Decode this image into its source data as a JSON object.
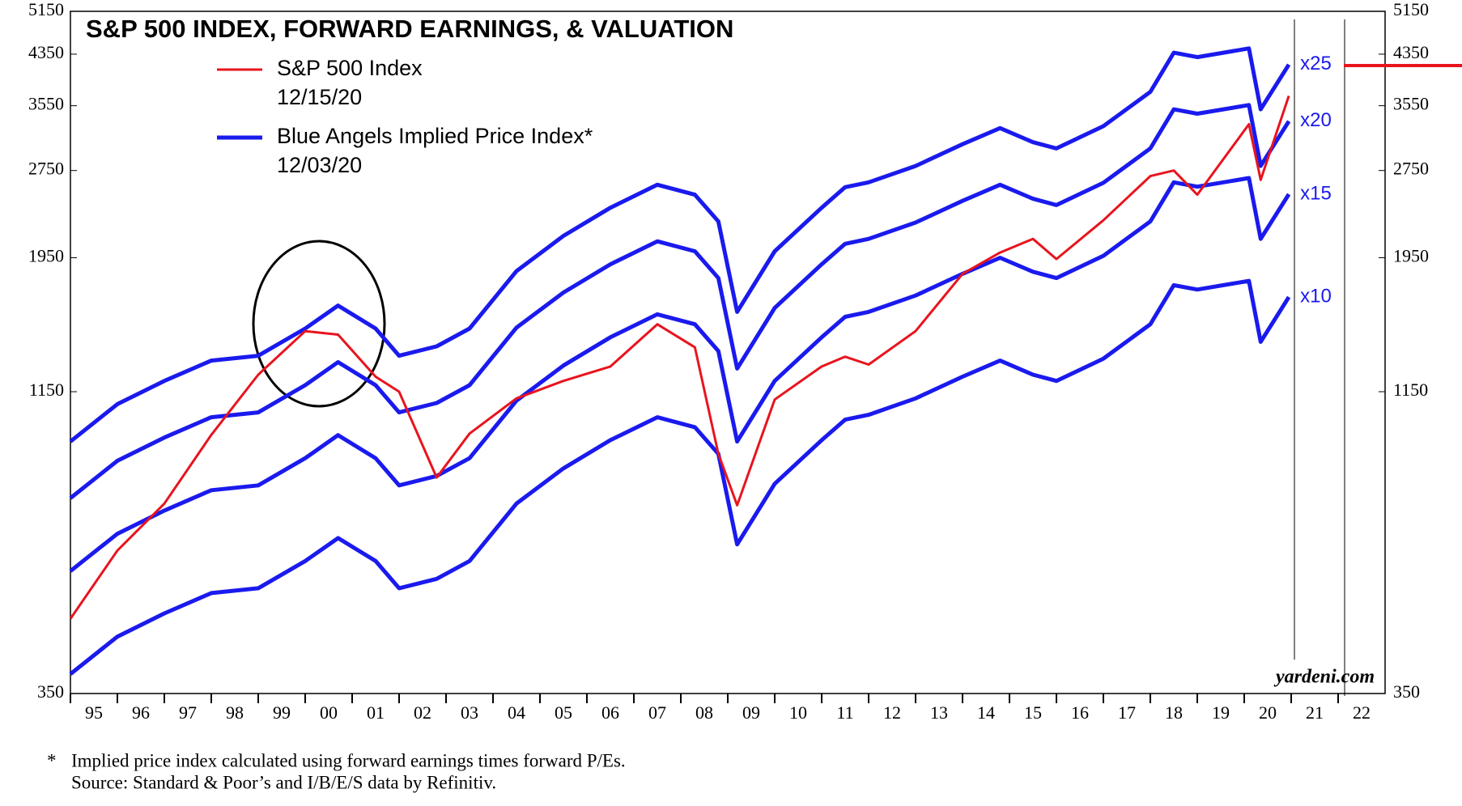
{
  "chart_data": {
    "type": "line",
    "title": "S&P 500 INDEX, FORWARD EARNINGS, & VALUATION",
    "legend": [
      {
        "label": "S&P 500 Index",
        "date": "12/15/20",
        "color": "#e8141e"
      },
      {
        "label": "Blue Angels Implied Price Index*",
        "date": "12/03/20",
        "color": "#1a1aee"
      }
    ],
    "x": [
      1995.0,
      1996.0,
      1997.0,
      1998.0,
      1999.0,
      2000.0,
      2000.7,
      2001.5,
      2002.0,
      2002.8,
      2003.5,
      2004.5,
      2005.5,
      2006.5,
      2007.5,
      2008.3,
      2008.8,
      2009.2,
      2010.0,
      2011.0,
      2011.5,
      2012.0,
      2013.0,
      2014.0,
      2014.8,
      2015.5,
      2016.0,
      2017.0,
      2018.0,
      2018.5,
      2019.0,
      2020.1,
      2020.35,
      2020.95
    ],
    "series": [
      {
        "name": "x25",
        "color": "#1a1aee",
        "values": [
          945,
          1095,
          1200,
          1300,
          1325,
          1475,
          1615,
          1475,
          1325,
          1375,
          1475,
          1850,
          2125,
          2375,
          2600,
          2500,
          2250,
          1575,
          2000,
          2375,
          2575,
          2625,
          2800,
          3050,
          3250,
          3075,
          3000,
          3275,
          3750,
          4375,
          4300,
          4450,
          3500,
          4175
        ]
      },
      {
        "name": "x20",
        "color": "#1a1aee",
        "values": [
          756,
          876,
          960,
          1040,
          1060,
          1180,
          1292,
          1180,
          1060,
          1100,
          1180,
          1480,
          1700,
          1900,
          2080,
          2000,
          1800,
          1260,
          1600,
          1900,
          2060,
          2100,
          2240,
          2440,
          2600,
          2460,
          2400,
          2620,
          3000,
          3500,
          3440,
          3560,
          2800,
          3340
        ]
      },
      {
        "name": "x15",
        "color": "#1a1aee",
        "values": [
          567,
          657,
          720,
          780,
          795,
          885,
          969,
          885,
          795,
          825,
          885,
          1110,
          1275,
          1425,
          1560,
          1500,
          1350,
          945,
          1200,
          1425,
          1545,
          1575,
          1680,
          1830,
          1950,
          1845,
          1800,
          1965,
          2250,
          2625,
          2580,
          2670,
          2100,
          2505
        ]
      },
      {
        "name": "x10",
        "color": "#1a1aee",
        "values": [
          378,
          438,
          480,
          520,
          530,
          590,
          646,
          590,
          530,
          550,
          590,
          740,
          850,
          950,
          1040,
          1000,
          900,
          630,
          800,
          950,
          1030,
          1050,
          1120,
          1220,
          1300,
          1230,
          1200,
          1310,
          1500,
          1750,
          1720,
          1780,
          1400,
          1670
        ]
      },
      {
        "name": "S&P 500 Index",
        "color": "#e8141e",
        "values": [
          470,
          615,
          740,
          970,
          1230,
          1460,
          1440,
          1220,
          1150,
          820,
          975,
          1120,
          1200,
          1270,
          1500,
          1370,
          900,
          735,
          1115,
          1270,
          1320,
          1280,
          1460,
          1830,
          1990,
          2100,
          1940,
          2260,
          2690,
          2750,
          2500,
          3300,
          2650,
          3690
        ]
      }
    ],
    "log_scale": true,
    "xlim": [
      1995,
      2023
    ],
    "xticks": [
      {
        "value": 1995,
        "label": "95"
      },
      {
        "value": 1996,
        "label": "96"
      },
      {
        "value": 1997,
        "label": "97"
      },
      {
        "value": 1998,
        "label": "98"
      },
      {
        "value": 1999,
        "label": "99"
      },
      {
        "value": 2000,
        "label": "00"
      },
      {
        "value": 2001,
        "label": "01"
      },
      {
        "value": 2002,
        "label": "02"
      },
      {
        "value": 2003,
        "label": "03"
      },
      {
        "value": 2004,
        "label": "04"
      },
      {
        "value": 2005,
        "label": "05"
      },
      {
        "value": 2006,
        "label": "06"
      },
      {
        "value": 2007,
        "label": "07"
      },
      {
        "value": 2008,
        "label": "08"
      },
      {
        "value": 2009,
        "label": "09"
      },
      {
        "value": 2010,
        "label": "10"
      },
      {
        "value": 2011,
        "label": "11"
      },
      {
        "value": 2012,
        "label": "12"
      },
      {
        "value": 2013,
        "label": "13"
      },
      {
        "value": 2014,
        "label": "14"
      },
      {
        "value": 2015,
        "label": "15"
      },
      {
        "value": 2016,
        "label": "16"
      },
      {
        "value": 2017,
        "label": "17"
      },
      {
        "value": 2018,
        "label": "18"
      },
      {
        "value": 2019,
        "label": "19"
      },
      {
        "value": 2020,
        "label": "20"
      },
      {
        "value": 2021,
        "label": "21"
      },
      {
        "value": 2022,
        "label": "22"
      }
    ],
    "ylim": [
      350,
      5150
    ],
    "yticks": [
      350,
      1150,
      1950,
      2750,
      3550,
      4350,
      5150
    ],
    "watermark": "yardeni.com",
    "footnote": {
      "marker": "*",
      "lines": [
        "Implied price index calculated using forward earnings times forward P/Es.",
        "Source: Standard & Poor’s and I/B/E/S data by Refinitiv."
      ]
    }
  }
}
